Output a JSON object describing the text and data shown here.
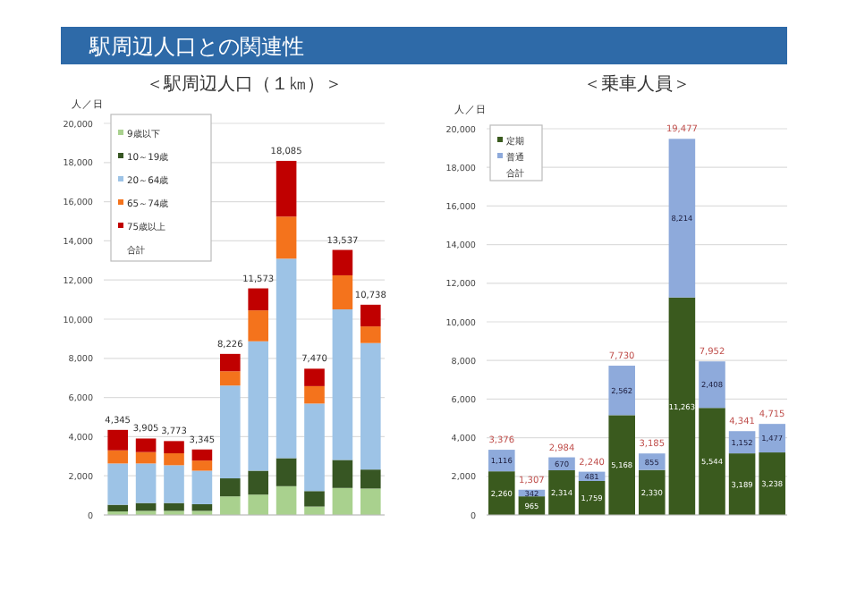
{
  "chart_data": [
    {
      "type": "bar",
      "title": "駅周辺人口との関連性",
      "subtitle": "＜駅周辺人口（１㎞）＞",
      "ylabel": "人／日",
      "stacked": true,
      "legend": "top left",
      "grid": "y",
      "categories": [
        null,
        null,
        null,
        null,
        null,
        null,
        null,
        null,
        null,
        null
      ],
      "series": [
        {
          "name": "9歳以下",
          "color": "#a9d18e",
          "values": [
            180,
            210,
            210,
            210,
            950,
            1040,
            1470,
            430,
            1380,
            1350
          ]
        },
        {
          "name": "10～19歳",
          "color": "#375623",
          "values": [
            340,
            400,
            400,
            340,
            920,
            1220,
            1430,
            790,
            1430,
            970
          ]
        },
        {
          "name": "20～64歳",
          "color": "#9dc3e6",
          "values": [
            2110,
            2020,
            1930,
            1710,
            4740,
            6610,
            10190,
            4470,
            7690,
            6460
          ]
        },
        {
          "name": "65～74歳",
          "color": "#f4731c",
          "values": [
            670,
            580,
            610,
            520,
            730,
            1580,
            2150,
            890,
            1740,
            850
          ]
        },
        {
          "name": "75歳以上",
          "color": "#c00000",
          "values": [
            1045,
            695,
            623,
            565,
            886,
            1123,
            2845,
            890,
            1297,
            1108
          ]
        }
      ],
      "totals": [
        "4,345",
        "3,905",
        "3,773",
        "3,345",
        "8,226",
        "11,573",
        "18,085",
        "7,470",
        "13,537",
        "10,738"
      ],
      "annotations": [
        "合計"
      ],
      "ylim": [
        0,
        20000
      ],
      "yticks": [
        {
          "value": 0,
          "label": "0"
        },
        {
          "value": 2000,
          "label": "2,000"
        },
        {
          "value": 4000,
          "label": "4,000"
        },
        {
          "value": 6000,
          "label": "6,000"
        },
        {
          "value": 8000,
          "label": "8,000"
        },
        {
          "value": 10000,
          "label": "10,000"
        },
        {
          "value": 12000,
          "label": "12,000"
        },
        {
          "value": 14000,
          "label": "14,000"
        },
        {
          "value": 16000,
          "label": "16,000"
        },
        {
          "value": 18000,
          "label": "18,000"
        },
        {
          "value": 20000,
          "label": "20,000"
        }
      ]
    },
    {
      "type": "bar",
      "title": "＜乗車人員＞",
      "ylabel": "人／日",
      "stacked": true,
      "legend": "top left",
      "grid": "y",
      "categories": [
        null,
        null,
        null,
        null,
        null,
        null,
        null,
        null,
        null,
        null
      ],
      "series": [
        {
          "name": "定期",
          "color": "#3a5a1e",
          "values": [
            2260,
            965,
            2314,
            1759,
            5168,
            2330,
            11263,
            5544,
            3189,
            3238
          ],
          "value_labels": [
            "2,260",
            "965",
            "2,314",
            "1,759",
            "5,168",
            "2,330",
            "11,263",
            "5,544",
            "3,189",
            "3,238"
          ]
        },
        {
          "name": "普通",
          "color": "#8eaadb",
          "values": [
            1116,
            342,
            670,
            481,
            2562,
            855,
            8214,
            2408,
            1152,
            1477
          ],
          "value_labels": [
            "1,116",
            "342",
            "670",
            "481",
            "2,562",
            "855",
            "8,214",
            "2,408",
            "1,152",
            "1,477"
          ]
        }
      ],
      "totals": [
        "3,376",
        "1,307",
        "2,984",
        "2,240",
        "7,730",
        "3,185",
        "19,477",
        "7,952",
        "4,341",
        "4,715"
      ],
      "annotations": [
        "合計"
      ],
      "ylim": [
        0,
        20000
      ],
      "yticks": [
        {
          "value": 0,
          "label": "0"
        },
        {
          "value": 2000,
          "label": "2,000"
        },
        {
          "value": 4000,
          "label": "4,000"
        },
        {
          "value": 6000,
          "label": "6,000"
        },
        {
          "value": 8000,
          "label": "8,000"
        },
        {
          "value": 10000,
          "label": "10,000"
        },
        {
          "value": 12000,
          "label": "12,000"
        },
        {
          "value": 14000,
          "label": "14,000"
        },
        {
          "value": 16000,
          "label": "16,000"
        },
        {
          "value": 18000,
          "label": "18,000"
        },
        {
          "value": 20000,
          "label": "20,000"
        }
      ]
    }
  ]
}
